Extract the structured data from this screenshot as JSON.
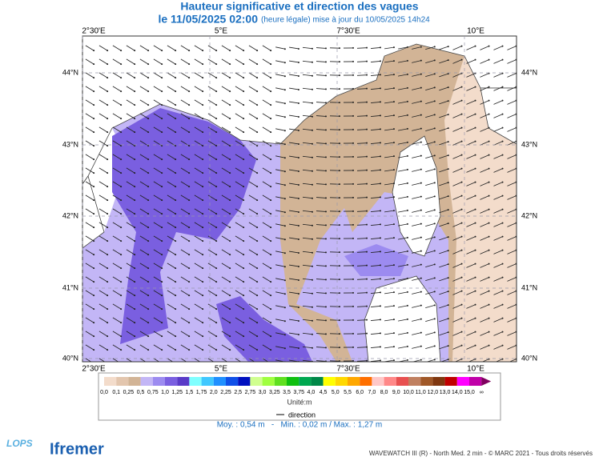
{
  "header": {
    "title": "Hauteur significative et direction des vagues",
    "date": "le 11/05/2025 02:00",
    "update": "(heure légale) mise à jour du 10/05/2025 14h24"
  },
  "map": {
    "lon_labels": [
      "2°30'E",
      "5°E",
      "7°30'E",
      "10°E"
    ],
    "lat_labels": [
      "44°N",
      "43°N",
      "42°N",
      "41°N",
      "40°N"
    ]
  },
  "legend": {
    "labels": [
      "0,0",
      "0,1",
      "0,25",
      "0,5",
      "0,75",
      "1,0",
      "1,25",
      "1,5",
      "1,75",
      "2,0",
      "2,25",
      "2,5",
      "2,75",
      "3,0",
      "3,25",
      "3,5",
      "3,75",
      "4,0",
      "4,5",
      "5,0",
      "5,5",
      "6,0",
      "7,0",
      "8,0",
      "9,0",
      "10,0",
      "11,0",
      "12,0",
      "13,0",
      "14,0",
      "15,0",
      "∞"
    ],
    "colors": [
      "#f3dccb",
      "#e3c6ae",
      "#d2b496",
      "#c3b6f6",
      "#9c8bf0",
      "#7a5fe0",
      "#5a3bc8",
      "#80ffff",
      "#40c8ff",
      "#2090ff",
      "#1050e8",
      "#0010c0",
      "#d0ff90",
      "#a0ff40",
      "#60e020",
      "#10c010",
      "#00a850",
      "#008848",
      "#ffff00",
      "#ffd800",
      "#ffa800",
      "#ff7000",
      "#ffc8c8",
      "#ff8888",
      "#e85050",
      "#c08060",
      "#a05828",
      "#803810",
      "#c00000",
      "#ff00ff",
      "#c000a8",
      "#800060"
    ],
    "unit": "Unité:m",
    "direction": "direction"
  },
  "stats": "Moy. : 0,54 m   -   Min. : 0,02 m / Max. : 1,27 m",
  "footer": {
    "credit": "WAVEWATCH III (R) - North Med. 2 min - © MARC 2021 - Tous droits réservés",
    "logo_lops": "LOPS",
    "logo_ifremer": "Ifremer"
  }
}
